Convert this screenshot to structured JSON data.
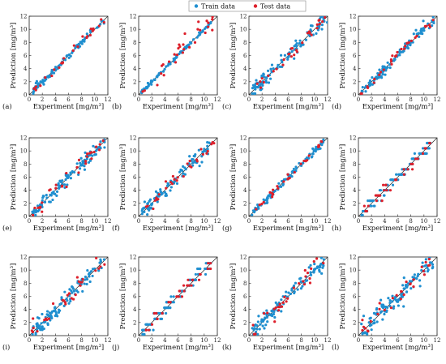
{
  "legend": {
    "train_label": "Train data",
    "test_label": "Test data"
  },
  "colors": {
    "train": "#1f8fd0",
    "test": "#dd1f2a",
    "diagonal": "#222222",
    "axis": "#222222"
  },
  "chart_data": [
    {
      "panel": "(a)",
      "type": "scatter",
      "xlabel": "Experiment [mg/m³]",
      "ylabel": "Prediction [mg/m³]",
      "xlim": [
        0,
        12
      ],
      "ylim": [
        0,
        12
      ],
      "xticks": [
        0,
        2,
        4,
        6,
        8,
        10,
        12
      ],
      "yticks": [
        0,
        2,
        4,
        6,
        8,
        10,
        12
      ],
      "diagonal": true,
      "pattern": {
        "seed": 11,
        "n_train": 90,
        "n_test": 28,
        "spread_train": 0.25,
        "spread_test": 0.35,
        "quant": 0,
        "max": 11.5
      },
      "series": [
        {
          "name": "Train data"
        },
        {
          "name": "Test data"
        }
      ]
    },
    {
      "panel": "(b)",
      "type": "scatter",
      "xlabel": "Experiment [mg/m³]",
      "ylabel": "Prediction [mg/m³]",
      "xlim": [
        0,
        12
      ],
      "ylim": [
        0,
        12
      ],
      "xticks": [
        0,
        2,
        4,
        6,
        8,
        10,
        12
      ],
      "yticks": [
        0,
        2,
        4,
        6,
        8,
        10,
        12
      ],
      "diagonal": true,
      "pattern": {
        "seed": 22,
        "n_train": 90,
        "n_test": 30,
        "spread_train": 0.12,
        "spread_test": 0.9,
        "quant": 0,
        "max": 11.5
      },
      "series": [
        {
          "name": "Train data"
        },
        {
          "name": "Test data"
        }
      ]
    },
    {
      "panel": "(c)",
      "type": "scatter",
      "xlabel": "Experiment [mg/m³]",
      "ylabel": "Prediction [mg/m³]",
      "xlim": [
        0,
        12
      ],
      "ylim": [
        0,
        12
      ],
      "xticks": [
        0,
        2,
        4,
        6,
        8,
        10,
        12
      ],
      "yticks": [
        0,
        2,
        4,
        6,
        8,
        10,
        12
      ],
      "diagonal": true,
      "pattern": {
        "seed": 33,
        "n_train": 110,
        "n_test": 30,
        "spread_train": 0.6,
        "spread_test": 0.6,
        "quant": 0,
        "max": 12
      },
      "series": [
        {
          "name": "Train data"
        },
        {
          "name": "Test data"
        }
      ]
    },
    {
      "panel": "(d)",
      "type": "scatter",
      "xlabel": "Experiment [mg/m³]",
      "ylabel": "Prediction [mg/m³]",
      "xlim": [
        0,
        12
      ],
      "ylim": [
        0,
        12
      ],
      "xticks": [
        0,
        2,
        4,
        6,
        8,
        10,
        12
      ],
      "yticks": [
        0,
        2,
        4,
        6,
        8,
        10,
        12
      ],
      "diagonal": true,
      "pattern": {
        "seed": 44,
        "n_train": 110,
        "n_test": 30,
        "spread_train": 0.4,
        "spread_test": 0.45,
        "quant": 0,
        "max": 11.5
      },
      "series": [
        {
          "name": "Train data"
        },
        {
          "name": "Test data"
        }
      ]
    },
    {
      "panel": "(e)",
      "type": "scatter",
      "xlabel": "Experiment [mg/m³]",
      "ylabel": "Prediction [mg/m³]",
      "xlim": [
        0,
        12
      ],
      "ylim": [
        0,
        12
      ],
      "xticks": [
        0,
        2,
        4,
        6,
        8,
        10,
        12
      ],
      "yticks": [
        0,
        2,
        4,
        6,
        8,
        10,
        12
      ],
      "diagonal": true,
      "pattern": {
        "seed": 55,
        "n_train": 110,
        "n_test": 30,
        "spread_train": 0.65,
        "spread_test": 0.6,
        "quant": 0,
        "max": 11.5
      },
      "series": [
        {
          "name": "Train data"
        },
        {
          "name": "Test data"
        }
      ]
    },
    {
      "panel": "(f)",
      "type": "scatter",
      "xlabel": "Experiment [mg/m³]",
      "ylabel": "Prediction [mg/m³]",
      "xlim": [
        0,
        12
      ],
      "ylim": [
        0,
        12
      ],
      "xticks": [
        0,
        2,
        4,
        6,
        8,
        10,
        12
      ],
      "yticks": [
        0,
        2,
        4,
        6,
        8,
        10,
        12
      ],
      "diagonal": true,
      "pattern": {
        "seed": 66,
        "n_train": 110,
        "n_test": 30,
        "spread_train": 0.5,
        "spread_test": 0.5,
        "quant": 0,
        "max": 11.5
      },
      "series": [
        {
          "name": "Train data"
        },
        {
          "name": "Test data"
        }
      ]
    },
    {
      "panel": "(g)",
      "type": "scatter",
      "xlabel": "Experiment [mg/m³]",
      "ylabel": "Prediction [mg/m³]",
      "xlim": [
        0,
        12
      ],
      "ylim": [
        0,
        12
      ],
      "xticks": [
        0,
        2,
        4,
        6,
        8,
        10,
        12
      ],
      "yticks": [
        0,
        2,
        4,
        6,
        8,
        10,
        12
      ],
      "diagonal": true,
      "pattern": {
        "seed": 77,
        "n_train": 100,
        "n_test": 30,
        "spread_train": 0.3,
        "spread_test": 0.35,
        "quant": 0,
        "max": 11.5
      },
      "series": [
        {
          "name": "Train data"
        },
        {
          "name": "Test data"
        }
      ]
    },
    {
      "panel": "(h)",
      "type": "scatter",
      "xlabel": "Experiment [mg/m³]",
      "ylabel": "Prediction [mg/m³]",
      "xlim": [
        0,
        12
      ],
      "ylim": [
        0,
        12
      ],
      "xticks": [
        0,
        2,
        4,
        6,
        8,
        10,
        12
      ],
      "yticks": [
        0,
        2,
        4,
        6,
        8,
        10,
        12
      ],
      "diagonal": true,
      "pattern": {
        "seed": 88,
        "n_train": 110,
        "n_test": 35,
        "spread_train": 0.35,
        "spread_test": 0.35,
        "quant": 0.8,
        "max": 11
      },
      "series": [
        {
          "name": "Train data"
        },
        {
          "name": "Test data"
        }
      ]
    },
    {
      "panel": "(i)",
      "type": "scatter",
      "xlabel": "Experiment [mg/m³]",
      "ylabel": "Prediction [mg/m³]",
      "xlim": [
        0,
        12
      ],
      "ylim": [
        0,
        12
      ],
      "xticks": [
        0,
        2,
        4,
        6,
        8,
        10,
        12
      ],
      "yticks": [
        0,
        2,
        4,
        6,
        8,
        10,
        12
      ],
      "diagonal": true,
      "pattern": {
        "seed": 99,
        "n_train": 110,
        "n_test": 30,
        "spread_train": 0.6,
        "spread_test": 0.7,
        "quant": 0,
        "max": 11.5
      },
      "series": [
        {
          "name": "Train data"
        },
        {
          "name": "Test data"
        }
      ]
    },
    {
      "panel": "(j)",
      "type": "scatter",
      "xlabel": "Experiment [mg/m³]",
      "ylabel": "Prediction [mg/m³]",
      "xlim": [
        0,
        12
      ],
      "ylim": [
        0,
        12
      ],
      "xticks": [
        0,
        2,
        4,
        6,
        8,
        10,
        12
      ],
      "yticks": [
        0,
        2,
        4,
        6,
        8,
        10,
        12
      ],
      "diagonal": true,
      "pattern": {
        "seed": 111,
        "n_train": 110,
        "n_test": 35,
        "spread_train": 0.4,
        "spread_test": 0.45,
        "quant": 0.85,
        "max": 11
      },
      "series": [
        {
          "name": "Train data"
        },
        {
          "name": "Test data"
        }
      ]
    },
    {
      "panel": "(k)",
      "type": "scatter",
      "xlabel": "Experiment [mg/m³]",
      "ylabel": "Prediction [mg/m³]",
      "xlim": [
        0,
        12
      ],
      "ylim": [
        0,
        12
      ],
      "xticks": [
        0,
        2,
        4,
        6,
        8,
        10,
        12
      ],
      "yticks": [
        0,
        2,
        4,
        6,
        8,
        10,
        12
      ],
      "diagonal": true,
      "pattern": {
        "seed": 122,
        "n_train": 110,
        "n_test": 30,
        "spread_train": 0.6,
        "spread_test": 0.65,
        "quant": 0,
        "max": 11.5
      },
      "series": [
        {
          "name": "Train data"
        },
        {
          "name": "Test data"
        }
      ]
    },
    {
      "panel": "(l)",
      "type": "scatter",
      "xlabel": "Experiment [mg/m³]",
      "ylabel": "Prediction [mg/m³]",
      "xlim": [
        0,
        12
      ],
      "ylim": [
        0,
        12
      ],
      "xticks": [
        0,
        2,
        4,
        6,
        8,
        10,
        12
      ],
      "yticks": [
        0,
        2,
        4,
        6,
        8,
        10,
        12
      ],
      "diagonal": true,
      "pattern": {
        "seed": 133,
        "n_train": 110,
        "n_test": 30,
        "spread_train": 0.75,
        "spread_test": 0.8,
        "quant": 0,
        "max": 11.5
      },
      "series": [
        {
          "name": "Train data"
        },
        {
          "name": "Test data"
        }
      ]
    }
  ]
}
